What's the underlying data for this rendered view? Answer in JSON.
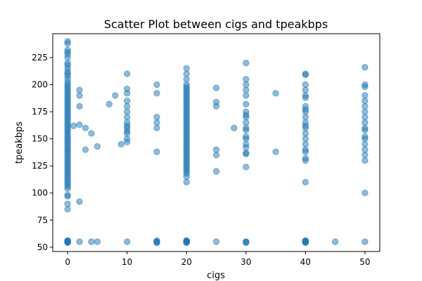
{
  "chart_data": {
    "type": "scatter",
    "title": "Scatter Plot between cigs and tpeakbps",
    "xlabel": "cigs",
    "ylabel": "tpeakbps",
    "xlim": [
      -2.5,
      52.5
    ],
    "ylim": [
      46,
      247
    ],
    "xticks": [
      "0",
      "10",
      "20",
      "30",
      "40",
      "50"
    ],
    "yticks": [
      "50",
      "75",
      "100",
      "125",
      "150",
      "175",
      "200",
      "225"
    ],
    "grid": false,
    "legend": "none",
    "marker_color": "#1f77b4",
    "marker_alpha": 0.5,
    "series": [
      {
        "x": [
          0,
          0,
          0,
          0,
          0,
          0,
          0,
          0,
          0,
          0,
          0,
          0,
          0,
          0,
          0,
          0,
          0,
          0,
          0,
          0,
          0,
          0,
          0,
          0,
          0,
          0,
          0,
          0,
          0,
          0,
          0,
          0,
          0,
          0,
          0,
          0,
          0,
          0,
          0,
          0,
          0,
          0,
          0,
          0,
          0,
          0,
          0,
          0,
          0,
          0,
          0,
          0,
          0,
          0,
          0,
          0,
          0,
          0,
          0,
          0,
          0,
          0,
          0,
          0,
          0,
          0,
          0,
          0,
          0,
          0,
          0,
          0,
          0,
          0,
          1,
          2,
          2,
          2,
          2,
          2,
          2,
          3,
          3,
          4,
          4,
          5,
          5,
          7,
          8,
          9,
          10,
          10,
          10,
          10,
          10,
          10,
          10,
          10,
          10,
          10,
          10,
          10,
          10,
          10,
          10,
          15,
          15,
          15,
          15,
          15,
          15,
          15,
          15,
          15,
          15,
          20,
          20,
          20,
          20,
          20,
          20,
          20,
          20,
          20,
          20,
          20,
          20,
          20,
          20,
          20,
          20,
          20,
          20,
          20,
          20,
          20,
          20,
          20,
          20,
          20,
          20,
          20,
          20,
          20,
          20,
          20,
          20,
          20,
          20,
          20,
          20,
          20,
          20,
          20,
          20,
          20,
          20,
          20,
          20,
          20,
          20,
          20,
          20,
          20,
          20,
          20,
          20,
          20,
          20,
          20,
          25,
          25,
          25,
          25,
          25,
          25,
          25,
          28,
          30,
          30,
          30,
          30,
          30,
          30,
          30,
          30,
          30,
          30,
          30,
          30,
          30,
          30,
          30,
          30,
          30,
          30,
          30,
          30,
          30,
          30,
          35,
          35,
          40,
          40,
          40,
          40,
          40,
          40,
          40,
          40,
          40,
          40,
          40,
          40,
          40,
          40,
          40,
          40,
          40,
          40,
          40,
          40,
          40,
          40,
          40,
          40,
          40,
          40,
          40,
          40,
          45,
          50,
          50,
          50,
          50,
          50,
          50,
          50,
          50,
          50,
          50,
          50,
          50,
          50,
          50,
          50,
          50,
          50,
          50,
          50
        ],
        "y": [
          240,
          238,
          232,
          230,
          228,
          225,
          220,
          218,
          215,
          212,
          210,
          208,
          205,
          202,
          200,
          198,
          196,
          194,
          192,
          190,
          188,
          186,
          184,
          182,
          180,
          178,
          176,
          174,
          172,
          170,
          168,
          166,
          164,
          162,
          160,
          158,
          156,
          154,
          152,
          150,
          148,
          146,
          144,
          142,
          140,
          138,
          136,
          134,
          132,
          130,
          128,
          126,
          124,
          122,
          120,
          118,
          116,
          114,
          112,
          110,
          108,
          106,
          104,
          98,
          97,
          90,
          85,
          56,
          55,
          55,
          54,
          55,
          56,
          55,
          162,
          195,
          190,
          180,
          163,
          92,
          55,
          160,
          140,
          155,
          55,
          143,
          55,
          182,
          190,
          145,
          210,
          196,
          192,
          185,
          180,
          175,
          170,
          165,
          162,
          160,
          157,
          155,
          150,
          147,
          55,
          200,
          192,
          170,
          165,
          160,
          138,
          56,
          55,
          54,
          55,
          215,
          210,
          205,
          200,
          198,
          196,
          194,
          192,
          190,
          188,
          186,
          184,
          182,
          180,
          178,
          176,
          174,
          172,
          170,
          168,
          166,
          164,
          162,
          160,
          158,
          156,
          154,
          152,
          150,
          148,
          146,
          144,
          142,
          140,
          138,
          136,
          134,
          132,
          130,
          128,
          126,
          124,
          122,
          120,
          118,
          115,
          110,
          56,
          55,
          55,
          54,
          55,
          56,
          55,
          55,
          197,
          184,
          180,
          140,
          135,
          120,
          55,
          160,
          220,
          205,
          200,
          195,
          190,
          182,
          175,
          172,
          170,
          165,
          160,
          158,
          152,
          150,
          145,
          142,
          137,
          136,
          124,
          55,
          55,
          54,
          192,
          138,
          210,
          209,
          200,
          195,
          190,
          188,
          180,
          177,
          175,
          170,
          165,
          162,
          160,
          155,
          150,
          145,
          140,
          138,
          132,
          130,
          110,
          56,
          55,
          55,
          54,
          55,
          56,
          55,
          55,
          216,
          200,
          198,
          190,
          185,
          180,
          175,
          170,
          165,
          160,
          158,
          152,
          150,
          145,
          140,
          135,
          130,
          100,
          55
        ]
      }
    ]
  }
}
